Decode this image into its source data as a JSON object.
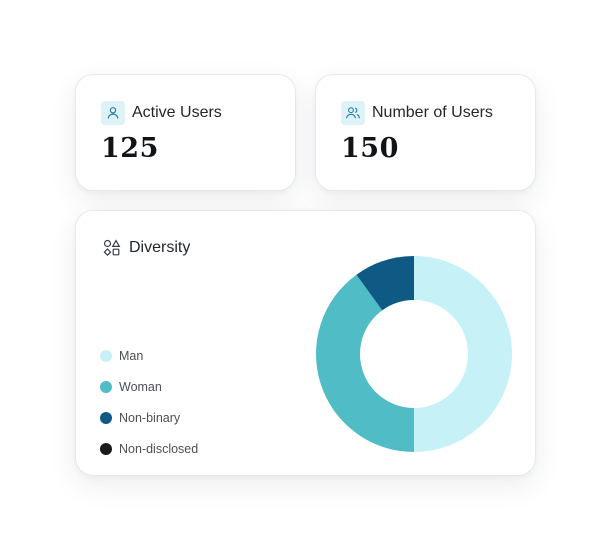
{
  "cards": {
    "active_users": {
      "title": "Active Users",
      "value": "125",
      "icon": "user-icon"
    },
    "number_of_users": {
      "title": "Number of Users",
      "value": "150",
      "icon": "users-icon"
    }
  },
  "diversity": {
    "title": "Diversity",
    "icon": "shapes-icon",
    "legend": [
      {
        "label": "Man",
        "color": "#c6f1f6"
      },
      {
        "label": "Woman",
        "color": "#4fbcc6"
      },
      {
        "label": "Non-binary",
        "color": "#0e5a85"
      },
      {
        "label": "Non-disclosed",
        "color": "#1a1a1a"
      }
    ]
  },
  "chart_data": {
    "type": "pie",
    "labels": [
      "Man",
      "Woman",
      "Non-binary",
      "Non-disclosed"
    ],
    "values": [
      50,
      40,
      10,
      0
    ],
    "unit": "%",
    "colors": [
      "#c6f1f6",
      "#4fbcc6",
      "#0e5a85",
      "#1a1a1a"
    ],
    "donut": true,
    "title": ""
  }
}
